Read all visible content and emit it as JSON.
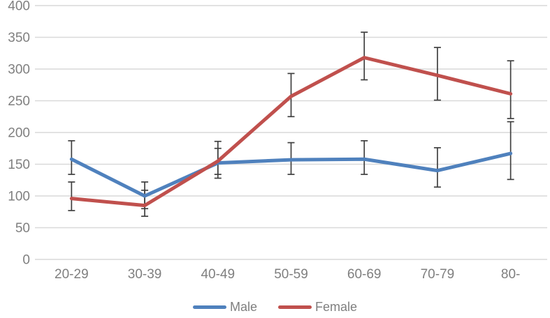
{
  "chart_data": {
    "type": "line",
    "title": "",
    "xlabel": "",
    "ylabel": "",
    "categories": [
      "20-29",
      "30-39",
      "40-49",
      "50-59",
      "60-69",
      "70-79",
      "80-"
    ],
    "y_ticks": [
      0,
      50,
      100,
      150,
      200,
      250,
      300,
      350,
      400
    ],
    "ylim": [
      0,
      400
    ],
    "grid": true,
    "legend_position": "bottom",
    "series": [
      {
        "name": "Male",
        "color": "#4F81BD",
        "values": [
          158,
          100,
          152,
          157,
          158,
          140,
          167
        ],
        "error_low": [
          134,
          80,
          134,
          134,
          134,
          114,
          126
        ],
        "error_high": [
          187,
          122,
          186,
          184,
          187,
          176,
          217
        ]
      },
      {
        "name": "Female",
        "color": "#C0504D",
        "values": [
          96,
          85,
          155,
          257,
          318,
          290,
          261
        ],
        "error_low": [
          77,
          68,
          128,
          225,
          283,
          251,
          222
        ],
        "error_high": [
          122,
          109,
          175,
          293,
          358,
          334,
          313
        ]
      }
    ],
    "colors": {
      "gridline": "#D9D9D9",
      "error_bar": "#404040",
      "label": "#7F7F7F",
      "background": "#FFFFFF"
    }
  }
}
